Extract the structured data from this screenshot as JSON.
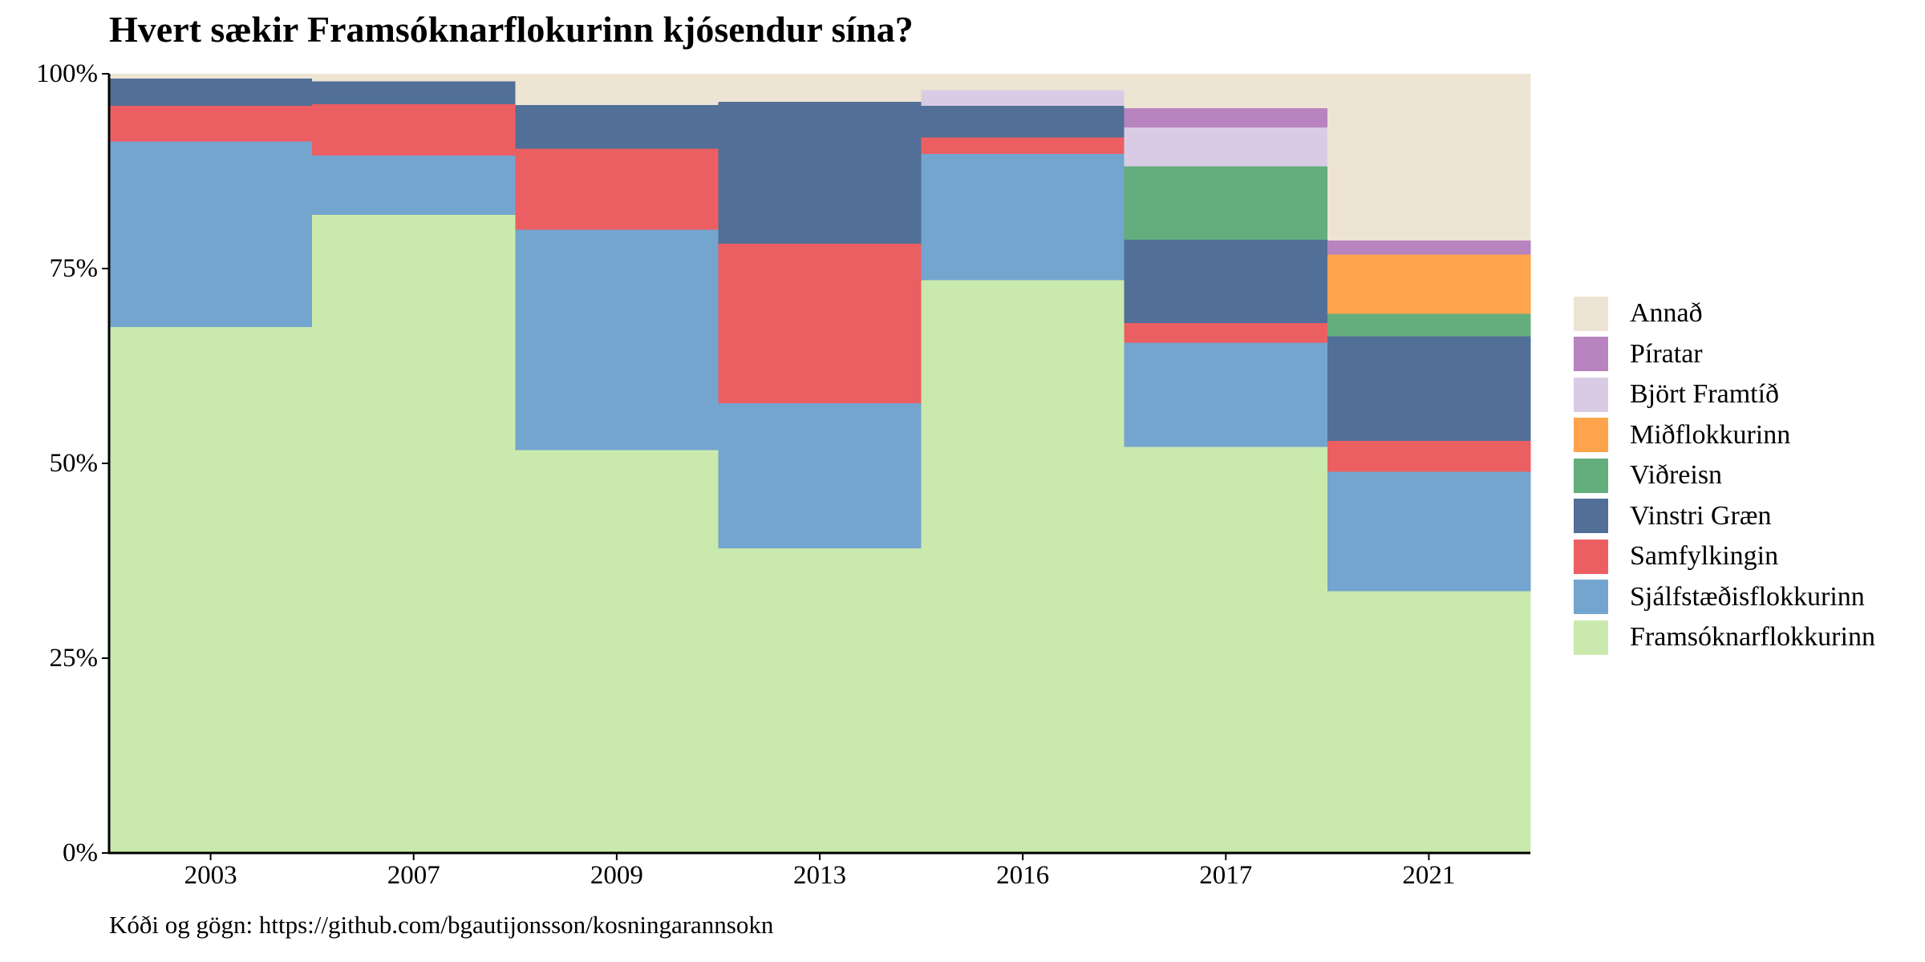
{
  "title": "Hvert sækir Framsóknarflokurinn kjósendur sína?",
  "caption": "Kóði og gögn: https://github.com/bgautijonsson/kosningarannsokn",
  "chart_data": {
    "type": "bar",
    "stacked": true,
    "bar_width": "full",
    "categories": [
      "2003",
      "2007",
      "2009",
      "2013",
      "2016",
      "2017",
      "2021"
    ],
    "ylim": [
      0,
      100
    ],
    "yticks": [
      0,
      25,
      50,
      75,
      100
    ],
    "ytick_labels": [
      "0%",
      "25%",
      "50%",
      "75%",
      "100%"
    ],
    "legend_position": "right",
    "series": [
      {
        "name": "Framsóknarflokkurinn",
        "color": "#cae9ad",
        "values": [
          67.5,
          81.9,
          51.7,
          39.1,
          73.5,
          52.1,
          33.6
        ]
      },
      {
        "name": "Sjálfstæðisflokkurinn",
        "color": "#74a5ce",
        "values": [
          23.8,
          7.6,
          28.3,
          18.6,
          16.2,
          13.4,
          15.3
        ]
      },
      {
        "name": "Samfylkingin",
        "color": "#eb5f63",
        "values": [
          4.6,
          6.6,
          10.4,
          20.5,
          2.1,
          2.5,
          4.0
        ]
      },
      {
        "name": "Vinstri Græn",
        "color": "#526f97",
        "values": [
          3.5,
          2.9,
          5.6,
          18.2,
          4.1,
          10.7,
          13.4
        ]
      },
      {
        "name": "Viðreisn",
        "color": "#63ae7c",
        "values": [
          0,
          0,
          0,
          0,
          0,
          9.4,
          2.9
        ]
      },
      {
        "name": "Miðflokkurinn",
        "color": "#fda44d",
        "values": [
          0,
          0,
          0,
          0,
          0,
          0,
          7.6
        ]
      },
      {
        "name": "Björt Framtíð",
        "color": "#dacbe4",
        "values": [
          0,
          0,
          0,
          0,
          2.0,
          5.0,
          0
        ]
      },
      {
        "name": "Píratar",
        "color": "#b884bf",
        "values": [
          0,
          0,
          0,
          0,
          0,
          2.5,
          1.8
        ]
      },
      {
        "name": "Annað",
        "color": "#ede4d3",
        "values": [
          0.6,
          1.0,
          4.0,
          3.6,
          2.1,
          4.4,
          21.4
        ]
      }
    ],
    "legend_order": [
      "Annað",
      "Píratar",
      "Björt Framtíð",
      "Miðflokkurinn",
      "Viðreisn",
      "Vinstri Græn",
      "Samfylkingin",
      "Sjálfstæðisflokkurinn",
      "Framsóknarflokkurinn"
    ]
  }
}
